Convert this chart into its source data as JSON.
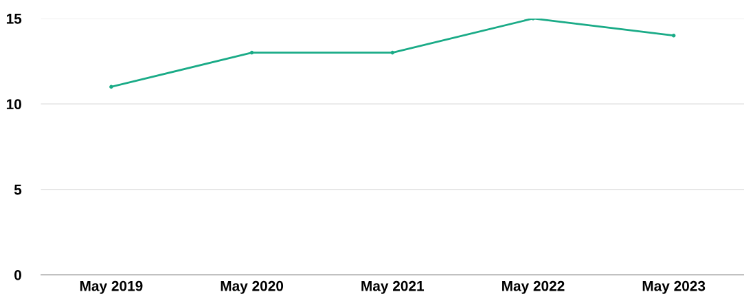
{
  "chart_data": {
    "type": "line",
    "categories": [
      "May 2019",
      "May 2020",
      "May 2021",
      "May 2022",
      "May 2023"
    ],
    "series": [
      {
        "color": "#1aab87",
        "values": [
          11,
          13,
          13,
          15,
          14
        ]
      }
    ],
    "ylim": [
      0,
      15
    ],
    "yticks": [
      0,
      5,
      10,
      15
    ],
    "grid": "y",
    "marker": "circle",
    "line_style": "solid"
  }
}
